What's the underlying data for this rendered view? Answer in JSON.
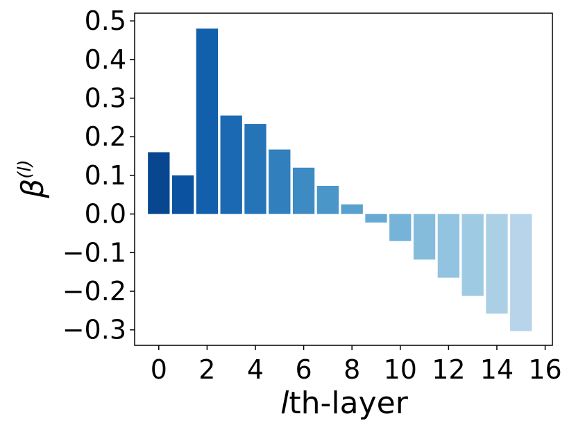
{
  "chart_data": {
    "type": "bar",
    "title": "",
    "xlabel_italic": "l",
    "xlabel_rest": "th-layer",
    "ylabel_main": "β",
    "ylabel_sup": "(l)",
    "categories": [
      0,
      1,
      2,
      3,
      4,
      5,
      6,
      7,
      8,
      9,
      10,
      11,
      12,
      13,
      14,
      15
    ],
    "values": [
      0.16,
      0.1,
      0.48,
      0.255,
      0.233,
      0.167,
      0.12,
      0.073,
      0.025,
      -0.022,
      -0.07,
      -0.118,
      -0.165,
      -0.212,
      -0.258,
      -0.303
    ],
    "colors": [
      "#08478f",
      "#0b53a0",
      "#125fab",
      "#1a69b2",
      "#2574b8",
      "#327fbe",
      "#3e8ac3",
      "#4a96c9",
      "#58a0ce",
      "#67aad3",
      "#76b3d8",
      "#85bcdc",
      "#92c3e0",
      "#9fcae3",
      "#abd0e6",
      "#b7d4ea"
    ],
    "xlim": [
      -1.0,
      16.3
    ],
    "ylim": [
      -0.34,
      0.52
    ],
    "xticks": [
      0,
      2,
      4,
      6,
      8,
      10,
      12,
      14,
      16
    ],
    "yticks": [
      -0.3,
      -0.2,
      -0.1,
      0.0,
      0.1,
      0.2,
      0.3,
      0.4,
      0.5
    ],
    "ytick_labels": [
      "−0.3",
      "−0.2",
      "−0.1",
      "0.0",
      "0.1",
      "0.2",
      "0.3",
      "0.4",
      "0.5"
    ],
    "grid": false,
    "legend": "none"
  }
}
